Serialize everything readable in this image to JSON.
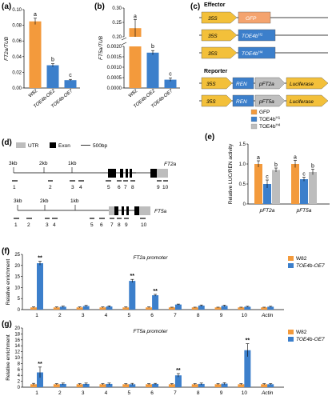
{
  "colors": {
    "orange": "#F39A3C",
    "blue": "#3C7FCB",
    "gray": "#BDBDBD",
    "arrow": "#F3C03A",
    "gfp": "#F4A36E",
    "gene": "#3C7FCB",
    "ren": "#3C7FCB",
    "prom": "#BFBFBF",
    "utr": "#BDBDBD",
    "exon": "#000000"
  },
  "panel_labels": {
    "a": "(a)",
    "b": "(b)",
    "c": "(c)",
    "d": "(d)",
    "e": "(e)",
    "f": "(f)",
    "g": "(g)"
  },
  "chart_data": [
    {
      "id": "a",
      "type": "bar",
      "ylabel": "FT2a/TUB",
      "categories": [
        "W82",
        "TOE4b-OE2",
        "TOE4b-OE7"
      ],
      "values": [
        0.085,
        0.029,
        0.01
      ],
      "errors": [
        0.004,
        0.002,
        0.001
      ],
      "colors": [
        "#F39A3C",
        "#3C7FCB",
        "#3C7FCB"
      ],
      "ylim": [
        0,
        0.1
      ],
      "yticks": [
        "0.00",
        "0.02",
        "0.04",
        "0.06",
        "0.08",
        "0.10"
      ],
      "letters": [
        "a",
        "b",
        "c"
      ]
    },
    {
      "id": "b",
      "type": "bar",
      "ylabel": "FT5a/TUB",
      "categories": [
        "W82",
        "TOE4b-OE2",
        "TOE4b-OE7"
      ],
      "values": [
        0.23,
        0.0017,
        0.0004
      ],
      "errors": [
        0.03,
        0.0001,
        8e-05
      ],
      "colors": [
        "#F39A3C",
        "#3C7FCB",
        "#3C7FCB"
      ],
      "yticks_low": [
        "0.0000",
        "0.0005",
        "0.0010",
        "0.0015",
        "0.0020"
      ],
      "yticks_high": [
        "0.20",
        "0.25",
        "0.30"
      ],
      "letters": [
        "a",
        "b",
        "c"
      ]
    },
    {
      "id": "e",
      "type": "bar",
      "ylabel": "Relative LUC/REN activity",
      "categories": [
        "pFT2a",
        "pFT5a"
      ],
      "series": [
        {
          "name": "GFP",
          "values": [
            1.0,
            1.0
          ],
          "errors": [
            0.08,
            0.09
          ],
          "letters": [
            "a",
            "a"
          ]
        },
        {
          "name": "TOE4bH1",
          "values": [
            0.5,
            0.62
          ],
          "errors": [
            0.1,
            0.05
          ],
          "letters": [
            "c",
            "c"
          ]
        },
        {
          "name": "TOE4bH4",
          "values": [
            0.85,
            0.8
          ],
          "errors": [
            0.05,
            0.07
          ],
          "letters": [
            "b",
            "b"
          ]
        }
      ],
      "ylim": [
        0,
        1.5
      ],
      "yticks": [
        "0",
        "0.5",
        "1.0",
        "1.5"
      ]
    },
    {
      "id": "f",
      "type": "bar",
      "title": "FT2a promoter",
      "ylabel": "Relative enrichment",
      "categories": [
        "1",
        "2",
        "3",
        "4",
        "5",
        "6",
        "7",
        "8",
        "9",
        "10",
        "Actin"
      ],
      "series": [
        {
          "name": "W82",
          "values": [
            1,
            1,
            1,
            1,
            1,
            1,
            1,
            1,
            1,
            1,
            1
          ],
          "errors": [
            0.2,
            0.2,
            0.2,
            0.2,
            0.2,
            0.2,
            0.1,
            0.1,
            0.1,
            0.1,
            0.1
          ]
        },
        {
          "name": "TOE4b-OE7",
          "values": [
            21,
            1.3,
            1.6,
            1.4,
            13,
            6.5,
            2.3,
            1.8,
            1.7,
            1.3,
            1.3
          ],
          "errors": [
            0.9,
            0.3,
            0.3,
            0.3,
            0.7,
            0.4,
            0.2,
            0.3,
            0.3,
            0.2,
            0.2
          ]
        }
      ],
      "sig": [
        "**",
        "",
        "",
        "",
        "**",
        "**",
        "",
        "",
        "",
        "",
        ""
      ],
      "ylim": [
        0,
        25
      ],
      "yticks": [
        "0",
        "5",
        "10",
        "15",
        "20",
        "25"
      ]
    },
    {
      "id": "g",
      "type": "bar",
      "title": "FT5a promoter",
      "ylabel": "Relative enrichment",
      "categories": [
        "1",
        "2",
        "3",
        "4",
        "5",
        "6",
        "7",
        "8",
        "9",
        "10",
        "Actin"
      ],
      "series": [
        {
          "name": "W82",
          "values": [
            1,
            1,
            1,
            1,
            1,
            1,
            1,
            1,
            1,
            1,
            1
          ],
          "errors": [
            0.3,
            0.2,
            0.2,
            0.2,
            0.2,
            0.2,
            0.2,
            0.2,
            0.2,
            0.2,
            0.2
          ]
        },
        {
          "name": "TOE4b-OE7",
          "values": [
            5,
            1.1,
            1.1,
            1.1,
            1.0,
            1.1,
            4.0,
            1.1,
            1.2,
            12.5,
            1.0
          ],
          " errors": [
            1.8,
            0.3,
            0.3,
            0.3,
            0.3,
            0.2,
            0.6,
            0.3,
            0.3,
            2.2,
            0.2
          ]
        }
      ],
      "sig": [
        "**",
        "",
        "",
        "",
        "",
        "",
        "**",
        "",
        "",
        "**",
        ""
      ],
      "ylim": [
        0,
        20
      ],
      "yticks": [
        "0",
        "2",
        "4",
        "6",
        "8",
        "10",
        "12",
        "14",
        "16",
        "18",
        "20"
      ]
    }
  ],
  "effector": {
    "title": "Effector",
    "rows": [
      {
        "prom": "35S",
        "gene": "GFP"
      },
      {
        "prom": "35S",
        "gene": "TOE4b",
        "sup": "H1"
      },
      {
        "prom": "35S",
        "gene": "TOE4b",
        "sup": "H4"
      }
    ]
  },
  "reporter": {
    "title": "Reporter",
    "rows": [
      {
        "prom": "35S",
        "ren": "REN",
        "target": "pFT2a",
        "luc": "Luciferase"
      },
      {
        "prom": "35S",
        "ren": "REN",
        "target": "pFT5a",
        "luc": "Luciferase"
      }
    ]
  },
  "gene_diagram": {
    "legend": {
      "utr": "UTR",
      "exon": "Exon",
      "scale": "500bp"
    },
    "ft2a": {
      "name": "FT2a",
      "kb": [
        "3kb",
        "2kb",
        "1kb"
      ],
      "regions": [
        "1",
        "2",
        "3",
        "4",
        "5",
        "6",
        "7",
        "8",
        "9",
        "10"
      ]
    },
    "ft5a": {
      "name": "FT5a",
      "kb": [
        "3kb",
        "2kb",
        "1kb"
      ],
      "regions": [
        "1",
        "2",
        "3",
        "4",
        "5",
        "6",
        "7",
        "8",
        "9",
        "10"
      ]
    }
  },
  "legend_e": [
    {
      "name": "GFP",
      "color": "#F39A3C"
    },
    {
      "name": "TOE4b",
      "sup": "H1",
      "color": "#3C7FCB"
    },
    {
      "name": "TOE4b",
      "sup": "H4",
      "color": "#BDBDBD"
    }
  ],
  "legend_fg": [
    {
      "name": "W82",
      "color": "#F39A3C"
    },
    {
      "name": "TOE4b-OE7",
      "color": "#3C7FCB"
    }
  ]
}
